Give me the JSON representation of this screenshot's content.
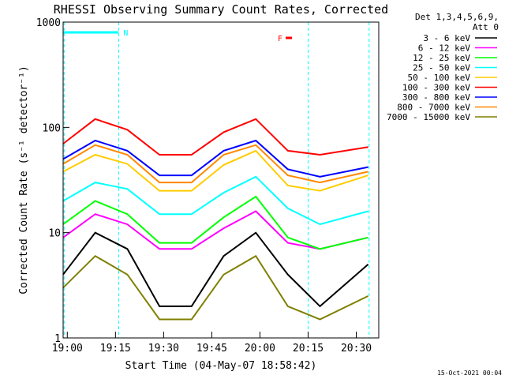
{
  "chart_data": {
    "type": "line",
    "title": "RHESSI Observing Summary Count Rates, Corrected",
    "xlabel": "Start Time (04-May-07 18:58:42)",
    "ylabel": "Corrected Count Rate (s⁻¹ detector⁻¹)",
    "scale": "log-y",
    "xlim": [
      "18:58:42",
      "20:37:00"
    ],
    "ylim": [
      1,
      1000
    ],
    "x_ticks": [
      "19:00",
      "19:15",
      "19:30",
      "19:45",
      "20:00",
      "20:15",
      "20:30"
    ],
    "y_ticks": [
      "1",
      "10",
      "100",
      "1000"
    ],
    "legend_title": [
      "Det 1,3,4,5,6,9,",
      "Att 0"
    ],
    "legend_position": "right",
    "flags": [
      {
        "label": "N",
        "color": "#00ffff",
        "segments": [
          [
            "18:58:42",
            "19:16:00"
          ]
        ]
      },
      {
        "label": "F",
        "color": "#ff0000",
        "segments": [
          [
            "19:68:00",
            "19:70:00"
          ]
        ]
      }
    ],
    "day_night_lines": [
      "18:59:00",
      "19:16:00",
      "20:15:00",
      "20:34:00"
    ],
    "x_minutes": [
      0,
      10,
      20,
      30,
      40,
      50,
      60,
      70,
      80,
      95
    ],
    "series": [
      {
        "name": "3 - 6 keV",
        "color": "#000000",
        "values": [
          4,
          10,
          7,
          2,
          2,
          6,
          10,
          4,
          2,
          5
        ]
      },
      {
        "name": "6 - 12 keV",
        "color": "#ff00ff",
        "values": [
          9,
          15,
          12,
          7,
          7,
          11,
          16,
          8,
          7,
          9
        ]
      },
      {
        "name": "12 - 25 keV",
        "color": "#00ff00",
        "values": [
          12,
          20,
          15,
          8,
          8,
          14,
          22,
          9,
          7,
          9
        ]
      },
      {
        "name": "25 - 50 keV",
        "color": "#00ffff",
        "values": [
          20,
          30,
          26,
          15,
          15,
          24,
          34,
          17,
          12,
          16
        ]
      },
      {
        "name": "50 - 100 keV",
        "color": "#ffcc00",
        "values": [
          38,
          55,
          45,
          25,
          25,
          44,
          60,
          28,
          25,
          35
        ]
      },
      {
        "name": "100 - 300 keV",
        "color": "#ff0000",
        "values": [
          70,
          120,
          95,
          55,
          55,
          90,
          120,
          60,
          55,
          65
        ]
      },
      {
        "name": "300 - 800 keV",
        "color": "#0000ff",
        "values": [
          50,
          75,
          60,
          35,
          35,
          60,
          75,
          40,
          34,
          42
        ]
      },
      {
        "name": "800 - 7000 keV",
        "color": "#ff8800",
        "values": [
          45,
          68,
          55,
          30,
          30,
          55,
          68,
          35,
          30,
          38
        ]
      },
      {
        "name": "7000 - 15000 keV",
        "color": "#808000",
        "values": [
          3,
          6,
          4,
          1.5,
          1.5,
          4,
          6,
          2,
          1.5,
          2.5
        ]
      }
    ]
  },
  "timestamp": "15-Oct-2021 00:04"
}
